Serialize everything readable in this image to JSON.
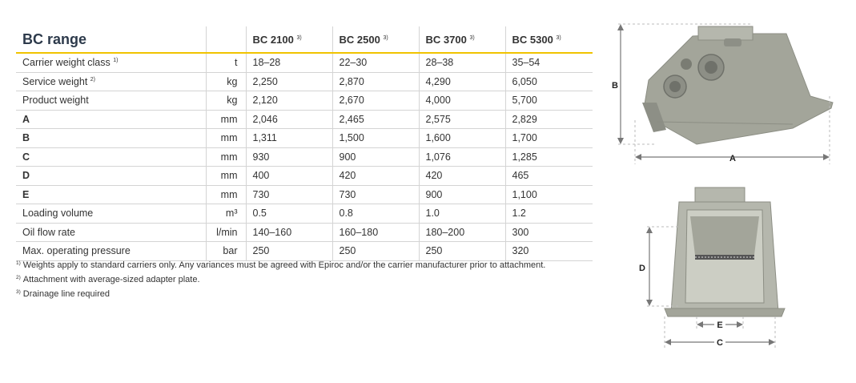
{
  "table": {
    "title": "BC range",
    "models": [
      {
        "name": "BC 2100",
        "note": "3)"
      },
      {
        "name": "BC 2500",
        "note": "3)"
      },
      {
        "name": "BC 3700",
        "note": "3)"
      },
      {
        "name": "BC 5300",
        "note": "3)"
      }
    ],
    "rows": [
      {
        "label": "Carrier weight class",
        "note": "1)",
        "unit": "t",
        "values": [
          "18–28",
          "22–30",
          "28–38",
          "35–54"
        ]
      },
      {
        "label": "Service weight",
        "note": "2)",
        "unit": "kg",
        "values": [
          "2,250",
          "2,870",
          "4,290",
          "6,050"
        ]
      },
      {
        "label": "Product weight",
        "note": "",
        "unit": "kg",
        "values": [
          "2,120",
          "2,670",
          "4,000",
          "5,700"
        ]
      },
      {
        "label": "A",
        "note": "",
        "unit": "mm",
        "values": [
          "2,046",
          "2,465",
          "2,575",
          "2,829"
        ]
      },
      {
        "label": "B",
        "note": "",
        "unit": "mm",
        "values": [
          "1,311",
          "1,500",
          "1,600",
          "1,700"
        ]
      },
      {
        "label": "C",
        "note": "",
        "unit": "mm",
        "values": [
          "930",
          "900",
          "1,076",
          "1,285"
        ]
      },
      {
        "label": "D",
        "note": "",
        "unit": "mm",
        "values": [
          "400",
          "420",
          "420",
          "465"
        ]
      },
      {
        "label": "E",
        "note": "",
        "unit": "mm",
        "values": [
          "730",
          "730",
          "900",
          "1,100"
        ]
      },
      {
        "label": "Loading volume",
        "note": "",
        "unit": "m³",
        "values": [
          "0.5",
          "0.8",
          "1.0",
          "1.2"
        ]
      },
      {
        "label": "Oil flow rate",
        "note": "",
        "unit": "l/min",
        "values": [
          "140–160",
          "160–180",
          "180–200",
          "300"
        ]
      },
      {
        "label": "Max. operating pressure",
        "note": "",
        "unit": "bar",
        "values": [
          "250",
          "250",
          "250",
          "320"
        ]
      }
    ]
  },
  "footnotes": [
    {
      "mark": "1)",
      "text": "Weights apply to standard carriers only. Any variances must be agreed with Epiroc and/or the carrier manufacturer prior to attachment."
    },
    {
      "mark": "2)",
      "text": "Attachment with average-sized adapter plate."
    },
    {
      "mark": "3)",
      "text": "Drainage line required"
    }
  ],
  "diagram": {
    "labels": {
      "a": "A",
      "b": "B",
      "c": "C",
      "d": "D",
      "e": "E"
    }
  }
}
